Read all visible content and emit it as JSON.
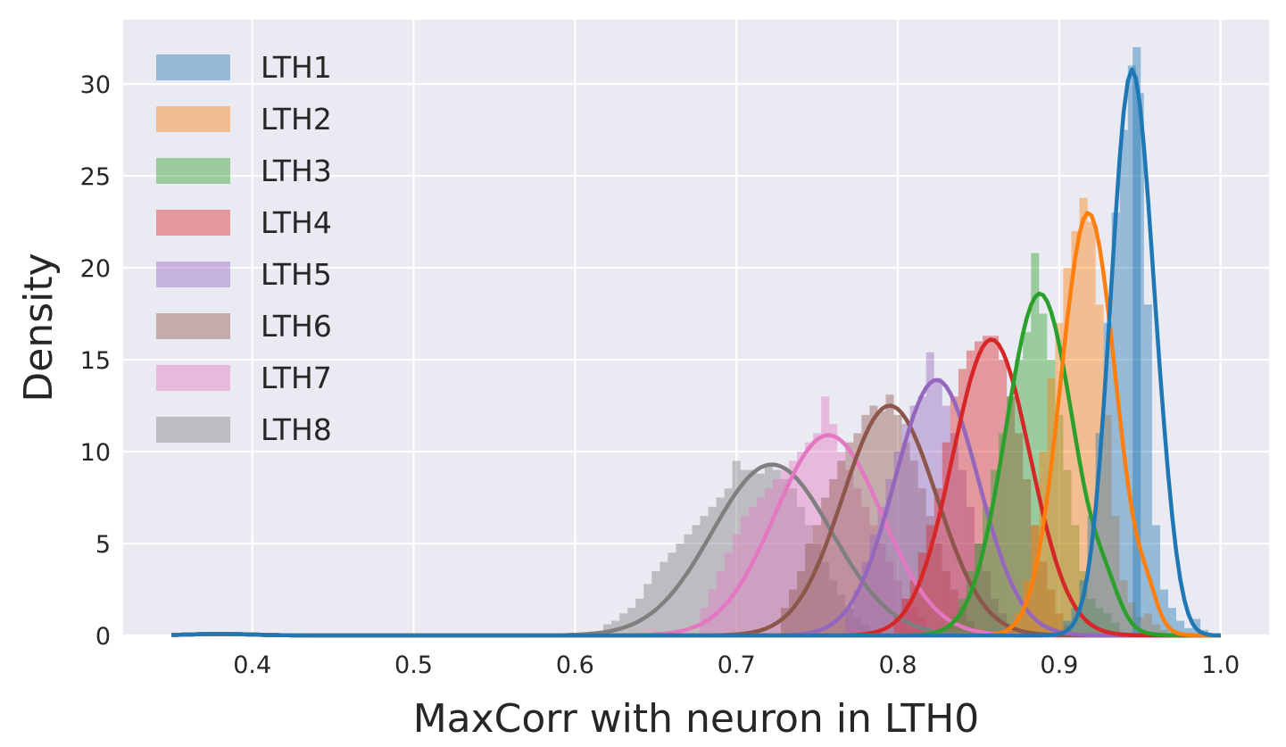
{
  "chart_data": {
    "type": "area",
    "title": "",
    "xlabel": "MaxCorr with neuron in LTH0",
    "ylabel": "Density",
    "xlim": [
      0.32,
      1.03
    ],
    "ylim": [
      0,
      33.5
    ],
    "xticks": [
      "0.4",
      "0.5",
      "0.6",
      "0.7",
      "0.8",
      "0.9",
      "1.0"
    ],
    "yticks": [
      "0",
      "5",
      "10",
      "15",
      "20",
      "25",
      "30"
    ],
    "grid": true,
    "legend_position": "top-left",
    "series": [
      {
        "name": "LTH1",
        "color": "#1f77b4",
        "kde": {
          "mu": 0.945,
          "sigma": 0.013,
          "peak": 30.7,
          "tail_x": 0.965,
          "tail_y": 2.0,
          "tail_sigma": 0.008
        },
        "hist": [
          [
            0.905,
            0.8
          ],
          [
            0.91,
            1.5
          ],
          [
            0.915,
            3
          ],
          [
            0.92,
            6.5
          ],
          [
            0.925,
            11
          ],
          [
            0.93,
            17
          ],
          [
            0.935,
            23
          ],
          [
            0.94,
            27.5
          ],
          [
            0.945,
            31
          ],
          [
            0.948,
            32
          ],
          [
            0.95,
            29.5
          ],
          [
            0.955,
            18
          ],
          [
            0.96,
            6
          ],
          [
            0.965,
            2.5
          ],
          [
            0.97,
            1.5
          ],
          [
            0.975,
            0.8
          ],
          [
            0.98,
            0.4
          ],
          [
            0.985,
            0.9
          ],
          [
            0.99,
            0.3
          ]
        ]
      },
      {
        "name": "LTH2",
        "color": "#ff7f0e",
        "kde": {
          "mu": 0.918,
          "sigma": 0.017,
          "peak": 23.0,
          "tail_x": 0.955,
          "tail_y": 1.2,
          "tail_sigma": 0.006
        },
        "hist": [
          [
            0.87,
            0.5
          ],
          [
            0.875,
            1.2
          ],
          [
            0.88,
            3
          ],
          [
            0.885,
            6
          ],
          [
            0.89,
            10
          ],
          [
            0.895,
            14
          ],
          [
            0.9,
            17
          ],
          [
            0.905,
            20
          ],
          [
            0.91,
            22
          ],
          [
            0.915,
            23.8
          ],
          [
            0.92,
            22.5
          ],
          [
            0.925,
            18
          ],
          [
            0.93,
            12
          ],
          [
            0.935,
            6.5
          ],
          [
            0.94,
            3
          ],
          [
            0.945,
            1.8
          ],
          [
            0.95,
            1
          ],
          [
            0.955,
            1.2
          ],
          [
            0.96,
            0.6
          ],
          [
            0.965,
            0.3
          ]
        ]
      },
      {
        "name": "LTH3",
        "color": "#2ca02c",
        "kde": {
          "mu": 0.888,
          "sigma": 0.021,
          "peak": 18.6,
          "tail_x": 0.93,
          "tail_y": 1.2,
          "tail_sigma": 0.008
        },
        "hist": [
          [
            0.83,
            0.5
          ],
          [
            0.835,
            1
          ],
          [
            0.84,
            2
          ],
          [
            0.845,
            3.5
          ],
          [
            0.85,
            5
          ],
          [
            0.855,
            7
          ],
          [
            0.86,
            9
          ],
          [
            0.865,
            11
          ],
          [
            0.87,
            13
          ],
          [
            0.875,
            15
          ],
          [
            0.88,
            16.5
          ],
          [
            0.885,
            20.8
          ],
          [
            0.89,
            17.5
          ],
          [
            0.895,
            15
          ],
          [
            0.9,
            12
          ],
          [
            0.905,
            9
          ],
          [
            0.91,
            6
          ],
          [
            0.915,
            3.5
          ],
          [
            0.92,
            2
          ],
          [
            0.925,
            1.5
          ],
          [
            0.93,
            1.2
          ],
          [
            0.935,
            0.7
          ]
        ]
      },
      {
        "name": "LTH4",
        "color": "#d62728",
        "kde": {
          "mu": 0.858,
          "sigma": 0.024,
          "peak": 16.1,
          "tail_x": 0.0,
          "tail_y": 0,
          "tail_sigma": 0.01
        },
        "hist": [
          [
            0.8,
            1
          ],
          [
            0.805,
            2
          ],
          [
            0.81,
            3
          ],
          [
            0.815,
            4.5
          ],
          [
            0.82,
            6
          ],
          [
            0.825,
            8
          ],
          [
            0.83,
            10.5
          ],
          [
            0.835,
            13
          ],
          [
            0.84,
            14.5
          ],
          [
            0.845,
            15.5
          ],
          [
            0.85,
            16
          ],
          [
            0.855,
            16.3
          ],
          [
            0.86,
            16.3
          ],
          [
            0.865,
            15
          ],
          [
            0.87,
            13
          ],
          [
            0.875,
            11
          ],
          [
            0.88,
            8.5
          ],
          [
            0.885,
            6
          ],
          [
            0.89,
            4
          ],
          [
            0.895,
            2.5
          ],
          [
            0.9,
            1.2
          ],
          [
            0.905,
            0.6
          ]
        ]
      },
      {
        "name": "LTH5",
        "color": "#9467bd",
        "kde": {
          "mu": 0.824,
          "sigma": 0.026,
          "peak": 13.9,
          "tail_x": 0.0,
          "tail_y": 0,
          "tail_sigma": 0.01
        },
        "hist": [
          [
            0.77,
            1.5
          ],
          [
            0.775,
            2.5
          ],
          [
            0.78,
            4
          ],
          [
            0.785,
            5.5
          ],
          [
            0.79,
            7
          ],
          [
            0.795,
            8.5
          ],
          [
            0.8,
            10
          ],
          [
            0.805,
            11.5
          ],
          [
            0.81,
            12.5
          ],
          [
            0.815,
            13
          ],
          [
            0.82,
            15.4
          ],
          [
            0.825,
            14
          ],
          [
            0.83,
            12.5
          ],
          [
            0.835,
            11
          ],
          [
            0.84,
            9
          ],
          [
            0.845,
            7
          ],
          [
            0.85,
            5
          ],
          [
            0.855,
            3.5
          ],
          [
            0.86,
            2
          ],
          [
            0.865,
            1.2
          ],
          [
            0.87,
            0.6
          ]
        ]
      },
      {
        "name": "LTH6",
        "color": "#8c564b",
        "kde": {
          "mu": 0.795,
          "sigma": 0.029,
          "peak": 12.5,
          "tail_x": 0.0,
          "tail_y": 0,
          "tail_sigma": 0.01
        },
        "hist": [
          [
            0.73,
            1.5
          ],
          [
            0.735,
            2.5
          ],
          [
            0.74,
            3.5
          ],
          [
            0.745,
            5
          ],
          [
            0.75,
            6
          ],
          [
            0.755,
            7.5
          ],
          [
            0.76,
            8.5
          ],
          [
            0.765,
            9.5
          ],
          [
            0.77,
            10.5
          ],
          [
            0.775,
            11
          ],
          [
            0.78,
            12
          ],
          [
            0.785,
            12.5
          ],
          [
            0.79,
            12.2
          ],
          [
            0.795,
            13.1
          ],
          [
            0.8,
            12
          ],
          [
            0.805,
            10.5
          ],
          [
            0.81,
            9.5
          ],
          [
            0.815,
            8
          ],
          [
            0.82,
            6.5
          ],
          [
            0.825,
            5
          ],
          [
            0.83,
            3.5
          ],
          [
            0.835,
            2.5
          ],
          [
            0.84,
            1.5
          ],
          [
            0.845,
            0.8
          ]
        ]
      },
      {
        "name": "LTH7",
        "color": "#e377c2",
        "kde": {
          "mu": 0.757,
          "sigma": 0.033,
          "peak": 10.9,
          "tail_x": 0.0,
          "tail_y": 0,
          "tail_sigma": 0.01
        },
        "hist": [
          [
            0.68,
            1.5
          ],
          [
            0.685,
            2.5
          ],
          [
            0.69,
            3.5
          ],
          [
            0.695,
            4.5
          ],
          [
            0.7,
            5.5
          ],
          [
            0.705,
            6.5
          ],
          [
            0.71,
            7
          ],
          [
            0.715,
            7.5
          ],
          [
            0.72,
            8
          ],
          [
            0.725,
            8.5
          ],
          [
            0.73,
            9
          ],
          [
            0.735,
            9.5
          ],
          [
            0.74,
            10
          ],
          [
            0.745,
            10.5
          ],
          [
            0.75,
            11
          ],
          [
            0.755,
            13
          ],
          [
            0.76,
            11.5
          ],
          [
            0.765,
            10
          ],
          [
            0.77,
            9
          ],
          [
            0.775,
            8
          ],
          [
            0.78,
            7
          ],
          [
            0.785,
            6
          ],
          [
            0.79,
            5
          ],
          [
            0.795,
            4
          ],
          [
            0.8,
            3
          ],
          [
            0.805,
            2
          ],
          [
            0.81,
            1.5
          ],
          [
            0.815,
            1
          ]
        ]
      },
      {
        "name": "LTH8",
        "color": "#7f7f7f",
        "kde": {
          "mu": 0.722,
          "sigma": 0.037,
          "peak": 9.3,
          "tail_x": 0.0,
          "tail_y": 0,
          "tail_sigma": 0.01
        },
        "hist": [
          [
            0.62,
            0.6
          ],
          [
            0.625,
            0.8
          ],
          [
            0.63,
            1.2
          ],
          [
            0.635,
            1.5
          ],
          [
            0.64,
            2
          ],
          [
            0.645,
            2.8
          ],
          [
            0.65,
            3.5
          ],
          [
            0.655,
            4
          ],
          [
            0.66,
            4.5
          ],
          [
            0.665,
            5
          ],
          [
            0.67,
            5.5
          ],
          [
            0.675,
            6
          ],
          [
            0.68,
            6.5
          ],
          [
            0.685,
            7
          ],
          [
            0.69,
            7.5
          ],
          [
            0.695,
            8
          ],
          [
            0.7,
            9.5
          ],
          [
            0.705,
            9
          ],
          [
            0.71,
            9
          ],
          [
            0.715,
            8.8
          ],
          [
            0.72,
            9.3
          ],
          [
            0.725,
            9
          ],
          [
            0.73,
            8.5
          ],
          [
            0.735,
            8
          ],
          [
            0.74,
            7
          ],
          [
            0.745,
            6
          ],
          [
            0.75,
            5
          ],
          [
            0.755,
            4
          ],
          [
            0.76,
            3
          ],
          [
            0.765,
            2.2
          ],
          [
            0.77,
            1.5
          ],
          [
            0.775,
            1
          ],
          [
            0.78,
            0.6
          ]
        ]
      }
    ]
  }
}
